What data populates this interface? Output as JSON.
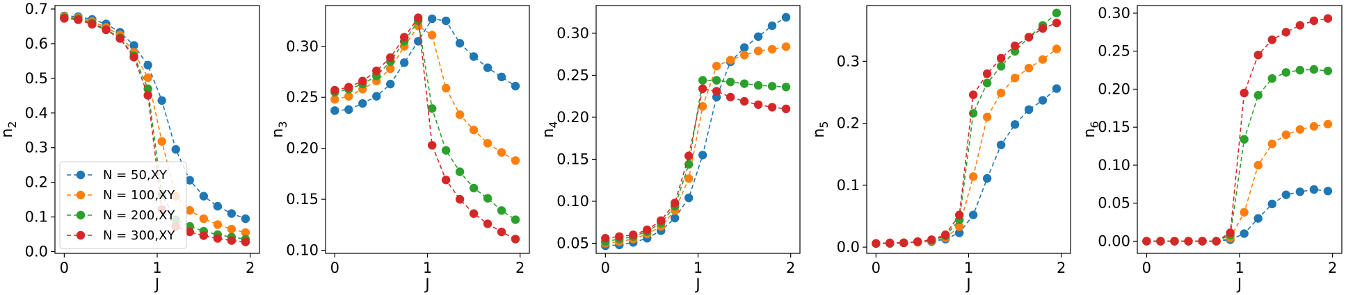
{
  "chart_data": [
    {
      "type": "line",
      "xlabel": "J",
      "ylabel": "n",
      "ylabel_sub": "2",
      "xlim": [
        -0.1,
        2.1
      ],
      "ylim": [
        -0.005,
        0.71
      ],
      "xticks": [
        0,
        1,
        2
      ],
      "yticks": [
        0.0,
        0.1,
        0.2,
        0.3,
        0.4,
        0.5,
        0.6,
        0.7
      ],
      "ytick_labels": [
        "0.0",
        "0.1",
        "0.2",
        "0.3",
        "0.4",
        "0.5",
        "0.6",
        "0.7"
      ],
      "legend": "lower-left",
      "x": [
        0.0,
        0.15,
        0.3,
        0.45,
        0.6,
        0.75,
        0.9,
        1.05,
        1.2,
        1.35,
        1.5,
        1.65,
        1.8,
        1.95
      ],
      "series": [
        {
          "name": "N = 50,XY",
          "values": [
            0.68,
            0.678,
            0.67,
            0.657,
            0.633,
            0.595,
            0.538,
            0.436,
            0.295,
            0.206,
            0.16,
            0.131,
            0.11,
            0.095
          ]
        },
        {
          "name": "N = 100,XY",
          "values": [
            0.678,
            0.675,
            0.664,
            0.647,
            0.625,
            0.575,
            0.502,
            0.318,
            0.16,
            0.119,
            0.095,
            0.078,
            0.065,
            0.055
          ]
        },
        {
          "name": "N = 200,XY",
          "values": [
            0.675,
            0.672,
            0.66,
            0.641,
            0.617,
            0.565,
            0.47,
            0.165,
            0.092,
            0.073,
            0.059,
            0.049,
            0.042,
            0.036
          ]
        },
        {
          "name": "N = 300,XY",
          "values": [
            0.673,
            0.669,
            0.656,
            0.64,
            0.615,
            0.561,
            0.451,
            0.122,
            0.073,
            0.057,
            0.046,
            0.038,
            0.032,
            0.028
          ]
        }
      ]
    },
    {
      "type": "line",
      "xlabel": "J",
      "ylabel": "n",
      "ylabel_sub": "3",
      "xlim": [
        -0.1,
        2.1
      ],
      "ylim": [
        0.097,
        0.34
      ],
      "xticks": [
        0,
        1,
        2
      ],
      "yticks": [
        0.1,
        0.15,
        0.2,
        0.25,
        0.3
      ],
      "ytick_labels": [
        "0.10",
        "0.15",
        "0.20",
        "0.25",
        "0.30"
      ],
      "x": [
        0.0,
        0.15,
        0.3,
        0.45,
        0.6,
        0.75,
        0.9,
        1.05,
        1.2,
        1.35,
        1.5,
        1.65,
        1.8,
        1.95
      ],
      "series": [
        {
          "name": "N = 50,XY",
          "values": [
            0.237,
            0.238,
            0.244,
            0.251,
            0.263,
            0.284,
            0.305,
            0.327,
            0.325,
            0.303,
            0.29,
            0.279,
            0.27,
            0.261
          ]
        },
        {
          "name": "N = 100,XY",
          "values": [
            0.248,
            0.251,
            0.258,
            0.266,
            0.278,
            0.3,
            0.32,
            0.311,
            0.259,
            0.233,
            0.218,
            0.205,
            0.196,
            0.188
          ]
        },
        {
          "name": "N = 200,XY",
          "values": [
            0.255,
            0.258,
            0.263,
            0.271,
            0.285,
            0.305,
            0.325,
            0.239,
            0.198,
            0.177,
            0.161,
            0.151,
            0.139,
            0.13
          ]
        },
        {
          "name": "N = 300,XY",
          "values": [
            0.257,
            0.26,
            0.266,
            0.276,
            0.289,
            0.309,
            0.328,
            0.203,
            0.169,
            0.15,
            0.136,
            0.126,
            0.118,
            0.111
          ]
        }
      ]
    },
    {
      "type": "line",
      "xlabel": "J",
      "ylabel": "n",
      "ylabel_sub": "4",
      "xlim": [
        -0.1,
        2.1
      ],
      "ylim": [
        0.038,
        0.333
      ],
      "xticks": [
        0,
        1,
        2
      ],
      "yticks": [
        0.05,
        0.1,
        0.15,
        0.2,
        0.25,
        0.3
      ],
      "ytick_labels": [
        "0.05",
        "0.10",
        "0.15",
        "0.20",
        "0.25",
        "0.30"
      ],
      "x": [
        0.0,
        0.15,
        0.3,
        0.45,
        0.6,
        0.75,
        0.9,
        1.05,
        1.2,
        1.35,
        1.5,
        1.65,
        1.8,
        1.95
      ],
      "series": [
        {
          "name": "N = 50,XY",
          "values": [
            0.047,
            0.048,
            0.051,
            0.056,
            0.065,
            0.08,
            0.104,
            0.155,
            0.224,
            0.266,
            0.283,
            0.296,
            0.309,
            0.319
          ]
        },
        {
          "name": "N = 100,XY",
          "values": [
            0.05,
            0.052,
            0.055,
            0.061,
            0.07,
            0.089,
            0.127,
            0.213,
            0.261,
            0.268,
            0.274,
            0.279,
            0.281,
            0.284
          ]
        },
        {
          "name": "N = 200,XY",
          "values": [
            0.052,
            0.055,
            0.058,
            0.064,
            0.074,
            0.094,
            0.144,
            0.244,
            0.244,
            0.242,
            0.24,
            0.238,
            0.237,
            0.236
          ]
        },
        {
          "name": "N = 300,XY",
          "values": [
            0.056,
            0.058,
            0.06,
            0.066,
            0.077,
            0.098,
            0.154,
            0.234,
            0.231,
            0.224,
            0.219,
            0.215,
            0.212,
            0.21
          ]
        }
      ]
    },
    {
      "type": "line",
      "xlabel": "J",
      "ylabel": "n",
      "ylabel_sub": "5",
      "xlim": [
        -0.1,
        2.1
      ],
      "ylim": [
        -0.01,
        0.39
      ],
      "xticks": [
        0,
        1,
        2
      ],
      "yticks": [
        0.0,
        0.1,
        0.2,
        0.3
      ],
      "ytick_labels": [
        "0.0",
        "0.1",
        "0.2",
        "0.3"
      ],
      "x": [
        0.0,
        0.15,
        0.3,
        0.45,
        0.6,
        0.75,
        0.9,
        1.05,
        1.2,
        1.35,
        1.5,
        1.65,
        1.8,
        1.95
      ],
      "series": [
        {
          "name": "N = 50,XY",
          "values": [
            0.006,
            0.006,
            0.007,
            0.008,
            0.009,
            0.013,
            0.023,
            0.052,
            0.111,
            0.165,
            0.198,
            0.222,
            0.237,
            0.256
          ]
        },
        {
          "name": "N = 100,XY",
          "values": [
            0.006,
            0.006,
            0.007,
            0.008,
            0.01,
            0.015,
            0.033,
            0.114,
            0.21,
            0.249,
            0.273,
            0.289,
            0.303,
            0.32
          ]
        },
        {
          "name": "N = 200,XY",
          "values": [
            0.006,
            0.006,
            0.007,
            0.009,
            0.011,
            0.018,
            0.044,
            0.216,
            0.265,
            0.292,
            0.316,
            0.339,
            0.358,
            0.378
          ]
        },
        {
          "name": "N = 300,XY",
          "values": [
            0.006,
            0.007,
            0.007,
            0.009,
            0.012,
            0.02,
            0.052,
            0.246,
            0.28,
            0.305,
            0.325,
            0.339,
            0.353,
            0.362
          ]
        }
      ]
    },
    {
      "type": "line",
      "xlabel": "J",
      "ylabel": "n",
      "ylabel_sub": "6",
      "xlim": [
        -0.1,
        2.1
      ],
      "ylim": [
        -0.016,
        0.31
      ],
      "xticks": [
        0,
        1,
        2
      ],
      "yticks": [
        0.0,
        0.05,
        0.1,
        0.15,
        0.2,
        0.25,
        0.3
      ],
      "ytick_labels": [
        "0.00",
        "0.05",
        "0.10",
        "0.15",
        "0.20",
        "0.25",
        "0.30"
      ],
      "x": [
        0.0,
        0.15,
        0.3,
        0.45,
        0.6,
        0.75,
        0.9,
        1.05,
        1.2,
        1.35,
        1.5,
        1.65,
        1.8,
        1.95
      ],
      "series": [
        {
          "name": "N = 50,XY",
          "values": [
            0.0,
            0.0,
            0.0,
            0.0,
            0.0,
            0.0,
            0.002,
            0.01,
            0.03,
            0.049,
            0.061,
            0.065,
            0.068,
            0.066
          ]
        },
        {
          "name": "N = 100,XY",
          "values": [
            0.0,
            0.0,
            0.0,
            0.0,
            0.0,
            0.0,
            0.004,
            0.038,
            0.1,
            0.128,
            0.14,
            0.147,
            0.151,
            0.154
          ]
        },
        {
          "name": "N = 200,XY",
          "values": [
            0.0,
            0.0,
            0.0,
            0.0,
            0.0,
            0.0,
            0.008,
            0.134,
            0.192,
            0.214,
            0.222,
            0.225,
            0.226,
            0.224
          ]
        },
        {
          "name": "N = 300,XY",
          "values": [
            0.0,
            0.0,
            0.0,
            0.0,
            0.0,
            0.0,
            0.011,
            0.195,
            0.245,
            0.265,
            0.275,
            0.284,
            0.29,
            0.293
          ]
        }
      ]
    }
  ],
  "colors": [
    "#1f77b4",
    "#ff7f0e",
    "#2ca02c",
    "#d62728"
  ]
}
